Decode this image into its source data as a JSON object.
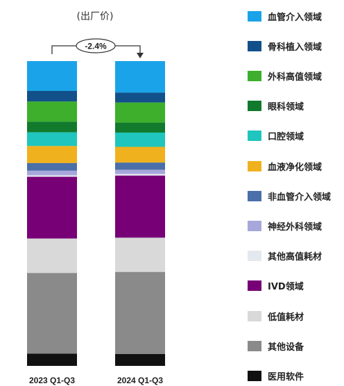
{
  "chart_data": {
    "type": "bar",
    "stacked": true,
    "normalized": true,
    "title": "(出厂价)",
    "categories": [
      "2023 Q1-Q3",
      "2024 Q1-Q3"
    ],
    "annotation": "-2.4%",
    "ylim": [
      0,
      100
    ],
    "series": [
      {
        "name": "血管介入领域",
        "color": "#1aa3e8",
        "values": [
          9.8,
          10.4
        ]
      },
      {
        "name": "骨科植入领域",
        "color": "#12508a",
        "values": [
          3.5,
          3.3
        ]
      },
      {
        "name": "外科高值领域",
        "color": "#3daf2c",
        "values": [
          6.6,
          6.6
        ]
      },
      {
        "name": "眼科领域",
        "color": "#127a2c",
        "values": [
          3.5,
          3.3
        ]
      },
      {
        "name": "口腔领域",
        "color": "#20c5bd",
        "values": [
          4.5,
          4.7
        ]
      },
      {
        "name": "血液净化领域",
        "color": "#f0b11e",
        "values": [
          5.6,
          5.2
        ]
      },
      {
        "name": "非血管介入领域",
        "color": "#4b6fa8",
        "values": [
          2.5,
          2.4
        ]
      },
      {
        "name": "神经外科领域",
        "color": "#a7a7dc",
        "values": [
          1.5,
          1.4
        ]
      },
      {
        "name": "其他高值耗材",
        "color": "#e4e8ef",
        "values": [
          0.5,
          0.5
        ]
      },
      {
        "name": "IVD领域",
        "color": "#780077",
        "values": [
          20.3,
          20.5
        ]
      },
      {
        "name": "低值耗材",
        "color": "#d9d9d9",
        "values": [
          11.3,
          11.3
        ]
      },
      {
        "name": "其他设备",
        "color": "#8a8a8a",
        "values": [
          26.5,
          27.1
        ]
      },
      {
        "name": "医用软件",
        "color": "#111111",
        "values": [
          4.0,
          3.9
        ]
      }
    ]
  }
}
